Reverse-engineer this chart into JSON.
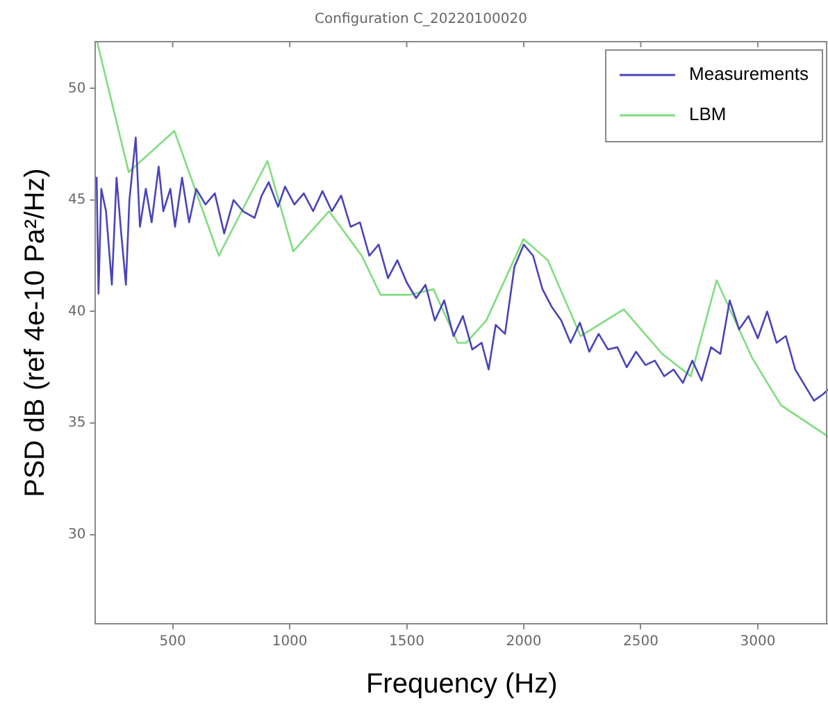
{
  "chart_data": {
    "type": "line",
    "title": "Configuration C_20220100020",
    "xlabel": "Frequency (Hz)",
    "ylabel": "PSD dB (ref 4e-10 Pa²/Hz)",
    "xlim": [
      170,
      3300
    ],
    "ylim": [
      26,
      52.1
    ],
    "xticks": [
      500,
      1000,
      1500,
      2000,
      2500,
      3000
    ],
    "yticks": [
      30,
      35,
      40,
      45,
      50
    ],
    "grid": false,
    "legend": "top right",
    "marker": "none",
    "line_style": "solid",
    "series": [
      {
        "name": "Measurements",
        "color": "#4a44b8",
        "x": [
          175,
          183,
          195,
          215,
          240,
          260,
          280,
          300,
          315,
          342,
          360,
          385,
          410,
          440,
          460,
          490,
          510,
          540,
          570,
          600,
          640,
          680,
          720,
          760,
          800,
          850,
          880,
          910,
          950,
          980,
          1020,
          1060,
          1100,
          1140,
          1180,
          1220,
          1260,
          1300,
          1340,
          1380,
          1420,
          1460,
          1500,
          1540,
          1580,
          1620,
          1660,
          1700,
          1740,
          1780,
          1820,
          1850,
          1880,
          1920,
          1960,
          2000,
          2040,
          2080,
          2120,
          2160,
          2200,
          2240,
          2280,
          2320,
          2360,
          2400,
          2440,
          2480,
          2520,
          2560,
          2600,
          2640,
          2680,
          2720,
          2760,
          2800,
          2840,
          2880,
          2920,
          2960,
          3000,
          3040,
          3080,
          3120,
          3160,
          3200,
          3240,
          3280,
          3300
        ],
        "values": [
          46,
          40.8,
          45.5,
          44.5,
          41.2,
          46,
          43.5,
          41.2,
          45,
          47.8,
          43.8,
          45.5,
          44,
          46.5,
          44.5,
          45.5,
          43.8,
          46,
          44,
          45.5,
          44.8,
          45.3,
          43.5,
          45,
          44.5,
          44.2,
          45.2,
          45.8,
          44.7,
          45.6,
          44.8,
          45.3,
          44.5,
          45.4,
          44.5,
          45.2,
          43.8,
          44,
          42.5,
          43,
          41.5,
          42.3,
          41.3,
          40.6,
          41.2,
          39.6,
          40.5,
          38.9,
          39.8,
          38.3,
          38.6,
          37.4,
          39.4,
          39,
          42,
          43,
          42.5,
          41,
          40.2,
          39.6,
          38.6,
          39.5,
          38.2,
          39,
          38.3,
          38.4,
          37.5,
          38.2,
          37.6,
          37.8,
          37.1,
          37.4,
          36.8,
          37.8,
          36.9,
          38.4,
          38.1,
          40.5,
          39.2,
          39.8,
          38.8,
          40,
          38.6,
          38.9,
          37.4,
          36.7,
          36,
          36.3,
          36.5
        ]
      },
      {
        "name": "LBM",
        "color": "#7fdd7f",
        "x": [
          177,
          312,
          507,
          697,
          905,
          1015,
          1168,
          1308,
          1388,
          1510,
          1614,
          1718,
          1754,
          1840,
          1999,
          2103,
          2243,
          2427,
          2592,
          2714,
          2824,
          2885,
          2977,
          3099,
          3300
        ],
        "values": [
          52.1,
          46.25,
          48.1,
          42.5,
          46.75,
          42.7,
          44.5,
          42.5,
          40.75,
          40.75,
          41,
          38.6,
          38.6,
          39.6,
          43.25,
          42.3,
          38.9,
          40.1,
          38.1,
          37.1,
          41.4,
          40,
          37.9,
          35.8,
          34.4
        ]
      }
    ]
  }
}
